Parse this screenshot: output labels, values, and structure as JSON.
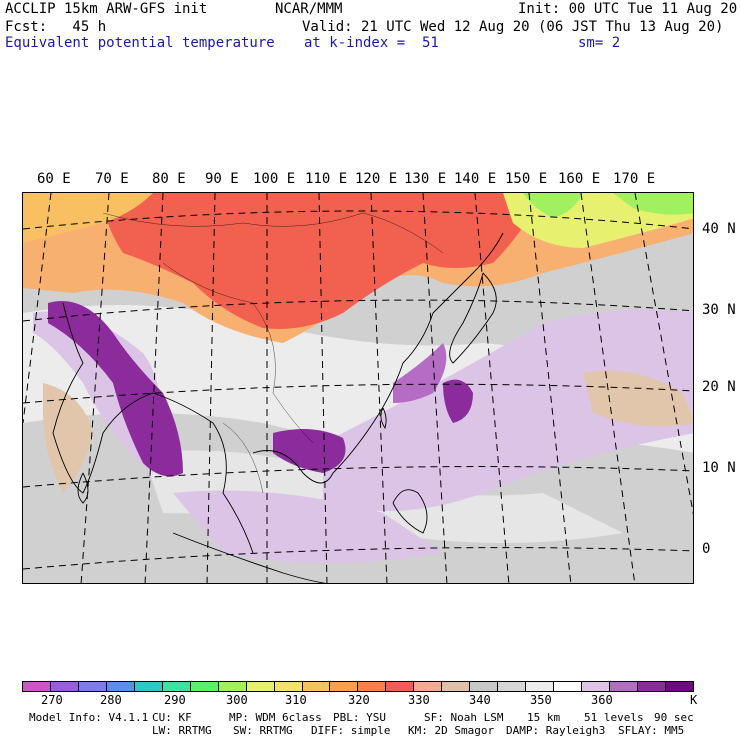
{
  "header": {
    "title_left": "ACCLIP 15km ARW-GFS init",
    "forecast": "Fcst:   45 h",
    "field_name": "Equivalent potential temperature",
    "center": "NCAR/MMM",
    "init": "Init: 00 UTC Tue 11 Aug 20",
    "valid": "Valid: 21 UTC Wed 12 Aug 20 (06 JST Thu 13 Aug 20)",
    "level": "at k-index =  51",
    "smoothing": "sm= 2"
  },
  "longitude_labels": [
    "60 E",
    "70 E",
    "80 E",
    "90 E",
    "100 E",
    "110 E",
    "120 E",
    "130 E",
    "140 E",
    "150 E",
    "160 E",
    "170 E"
  ],
  "latitude_labels": [
    "40 N",
    "30 N",
    "20 N",
    "10 N",
    "0"
  ],
  "colorbar": {
    "colors": [
      "#cc55cc",
      "#9a5fd6",
      "#7d7de8",
      "#5a8fea",
      "#2fc8c8",
      "#3fe0a0",
      "#5cf06a",
      "#a0f060",
      "#e6f070",
      "#f6e070",
      "#f8c060",
      "#f8a050",
      "#f87f50",
      "#f25f50",
      "#f8aa90",
      "#e0c0a8",
      "#c8c8c8",
      "#d6d6d6",
      "#ececec",
      "#ffffff",
      "#e0c4e8",
      "#b46cc4",
      "#8c2c9c",
      "#700a80"
    ],
    "tick_labels": [
      "270",
      "280",
      "290",
      "300",
      "310",
      "320",
      "330",
      "340",
      "350",
      "360"
    ],
    "unit": "K"
  },
  "footer": {
    "line1": {
      "model": "Model Info: V4.1.1",
      "cu": "CU: KF",
      "mp": "MP: WDM 6class",
      "pbl": "PBL: YSU",
      "sf": "SF: Noah LSM",
      "res": "15 km",
      "levels": "51 levels",
      "dt": "90 sec"
    },
    "line2": {
      "lw": "LW: RRTMG",
      "sw": "SW: RRTMG",
      "diff": "DIFF: simple",
      "km": "KM: 2D Smagor",
      "damp": "DAMP: Rayleigh3",
      "sflay": "SFLAY: MM5"
    }
  }
}
